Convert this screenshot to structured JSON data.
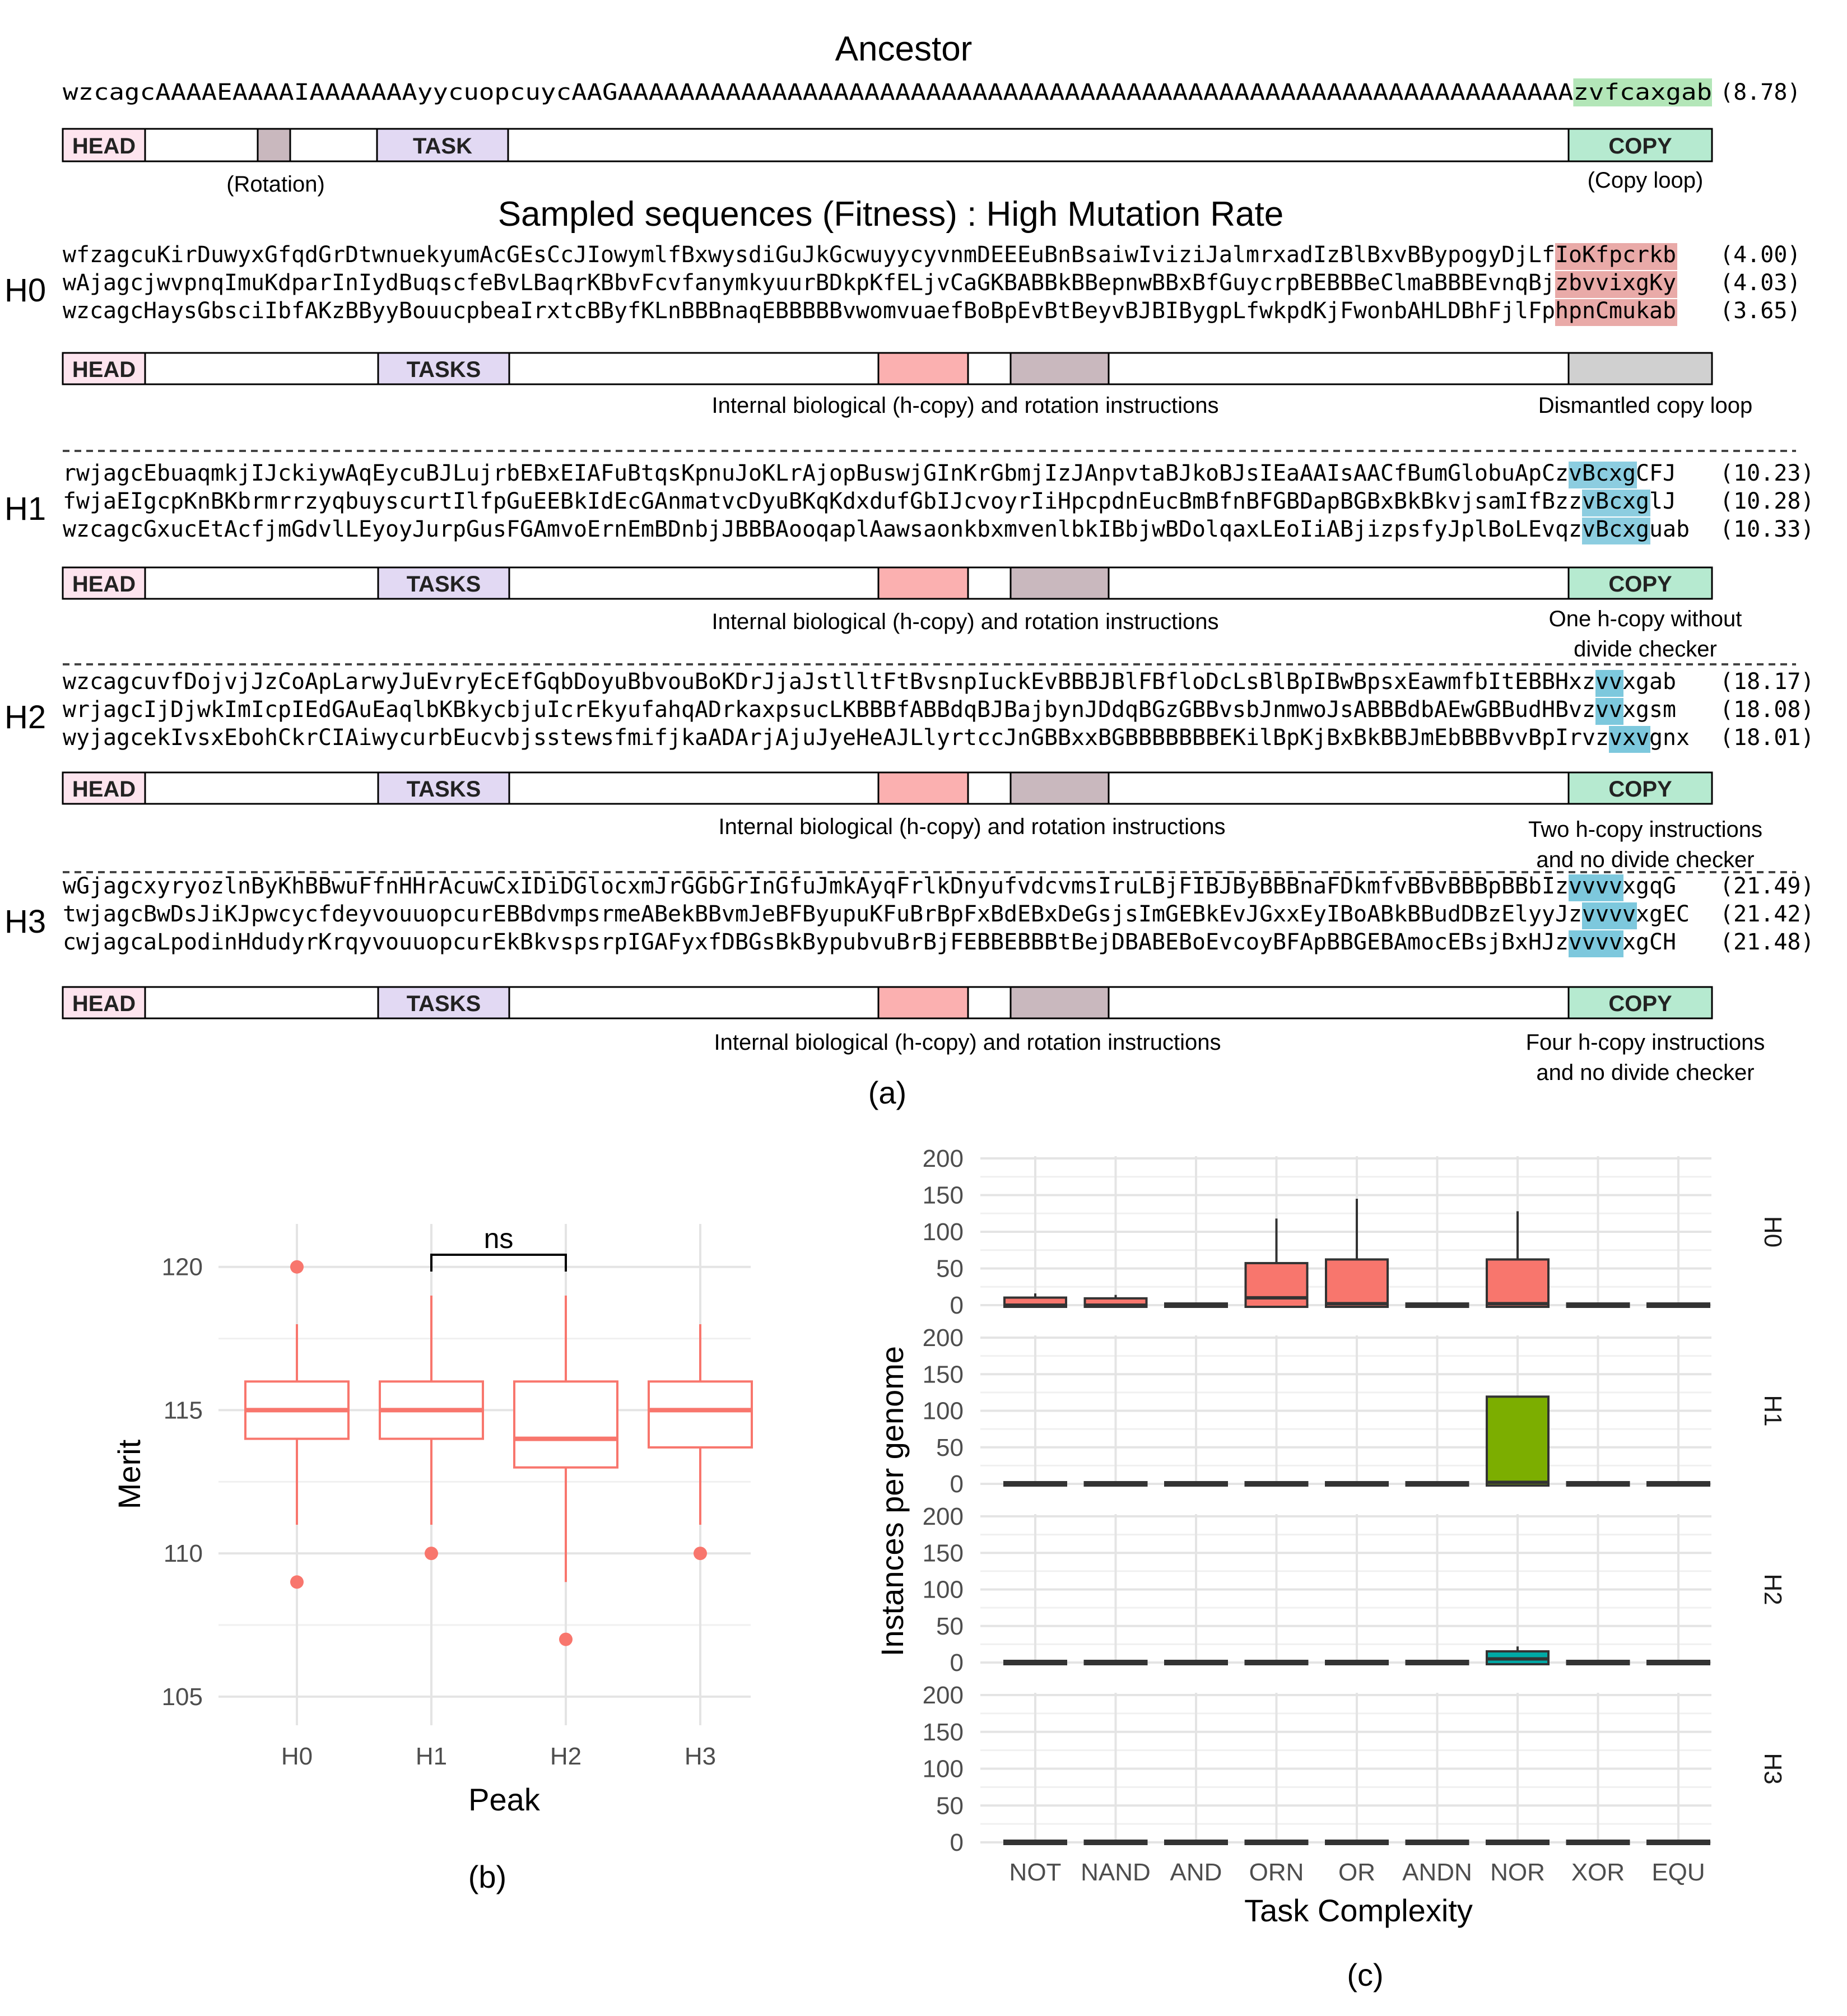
{
  "panel_a": {
    "ancestor": {
      "title": "Ancestor",
      "sequence": "wzcagcAAAAEAAAAIAAAAAAAyycuopcuycAAGAAAAAAAAAAAAAAAAAAAAAAAAAAAAAAAAAAAAAAAAAAAAAAAAAAAAAAAAAAAAAAzvfcaxgab",
      "highlight": "zvfcaxgab",
      "fitness": "(8.78)",
      "annotations": [
        "(Rotation)",
        "(Copy loop)"
      ]
    },
    "sampled_title": "Sampled sequences (Fitness) : High Mutation Rate",
    "segment_labels": {
      "head": "HEAD",
      "task": "TASK",
      "tasks": "TASKS",
      "copy": "COPY"
    },
    "groups": [
      {
        "label": "H0",
        "rows": [
          {
            "prefix": "wfzagcuKirDuwyxGfqdGrDtwnuekyumAcGEsCcJIowymlfBxwysdiGuJkGcwuyycyvnmDEEEuBnBsaiwIviziJalmrxadIzBlBxvBBypogyDjLf",
            "highlight": "IoKfpcrkb",
            "suffix": "",
            "fitness": "(4.00)"
          },
          {
            "prefix": "wAjagcjwvpnqImuKdparInIydBuqscfeBvLBaqrKBbvFcvfanymkyuurBDkpKfELjvCaGKBABBkBBepnwBBxBfGuycrpBEBBBeClmaBBBEvnqBj",
            "highlight": "zbvvixgKy",
            "suffix": "",
            "fitness": "(4.03)"
          },
          {
            "prefix": "wzcagcHaysGbsciIbfAKzBByyBouucpbeaIrxtcBByfKLnBBBnaqEBBBBBvwomvuaefBoBpEvBtBeyvBJBIBygpLfwkpdKjFwonbAHLDBhFjlFp",
            "highlight": "hpnCmukab",
            "suffix": "",
            "fitness": "(3.65)"
          }
        ],
        "notes": [
          "Internal biological (h-copy) and rotation instructions",
          "Dismantled copy loop"
        ]
      },
      {
        "label": "H1",
        "rows": [
          {
            "prefix": "rwjagcEbuaqmkjIJckiywAqEycuBJLujrbEBxEIAFuBtqsKpnuJoKLrAjopBuswjGInKrGbmjIzJAnpvtaBJkoBJsIEaAAIsAACfBumGlobuApCz",
            "highlight": "vBcxg",
            "suffix": "CFJ",
            "fitness": "(10.23)"
          },
          {
            "prefix": "fwjaEIgcpKnBKbrmrrzyqbuyscurtIlfpGuEEBkIdEcGAnmatvcDyuBKqKdxdufGbIJcvoyrIiHpcpdnEucBmBfnBFGBDapBGBxBkBkvjsamIfBzz",
            "highlight": "vBcxg",
            "suffix": "lJ",
            "fitness": "(10.28)"
          },
          {
            "prefix": "wzcagcGxucEtAcfjmGdvlLEyoyJurpGusFGAmvoErnEmBDnbjJBBBAooqaplAawsaonkbxmvenlbkIBbjwBDolqaxLEoIiABjizpsfyJplBoLEvqz",
            "highlight": "vBcxg",
            "suffix": "uab",
            "fitness": "(10.33)"
          }
        ],
        "notes": [
          "Internal biological (h-copy) and rotation instructions",
          "One h-copy without",
          "divide checker"
        ]
      },
      {
        "label": "H2",
        "rows": [
          {
            "prefix": "wzcagcuvfDojvjJzCoApLarwyJuEvryEcEfGqbDoyuBbvouBoKDrJjaJstlltFtBvsnpIuckEvBBBJBlFBfloDcLsBlBpIBwBpsxEawmfbItEBBHxz",
            "highlight": "vv",
            "suffix": "xgab",
            "fitness": "(18.17)"
          },
          {
            "prefix": "wrjagcIjDjwkImIcpIEdGAuEaqlbKBkycbjuIcrEkyufahqADrkaxpsucLKBBBfABBdqBJBajbynJDdqBGzGBBvsbJnmwoJsABBBdbAEwGBBudHBvz",
            "highlight": "vv",
            "suffix": "xgsm",
            "fitness": "(18.08)"
          },
          {
            "prefix": "wyjagcekIvsxEbohCkrCIAiwycurbEucvbjsstewsfmifjkaADArjAjuJyeHeAJLlyrtccJnGBBxxBGBBBBBBBEKilBpKjBxBkBBJmEbBBBvvBpIrvz",
            "highlight": "vxv",
            "suffix": "gnx",
            "fitness": "(18.01)"
          }
        ],
        "notes": [
          "Internal biological (h-copy) and rotation instructions",
          "Two h-copy instructions",
          "and no divide checker"
        ]
      },
      {
        "label": "H3",
        "rows": [
          {
            "prefix": "wGjagcxyryozlnByKhBBwuFfnHHrAcuwCxIDiDGlocxmJrGGbGrInGfuJmkAyqFrlkDnyufvdcvmsIruLBjFIBJByBBBnaFDkmfvBBvBBBpBBbIz",
            "highlight": "vvvv",
            "suffix": "xgqG",
            "fitness": "(21.49)"
          },
          {
            "prefix": "twjagcBwDsJiKJpwcycfdeyvouuopcurEBBdvmpsrmeABekBBvmJeBFByupuKFuBrBpFxBdEBxDeGsjsImGEBkEvJGxxEyIBoABkBBudDBzElyyJz",
            "highlight": "vvvv",
            "suffix": "xgEC",
            "fitness": "(21.42)"
          },
          {
            "prefix": "cwjagcaLpodinHdudyrKrqyvouuopcurEkBkvspsrpIGAFyxfDBGsBkBypubvuBrBjFEBBEBBBtBejDBABEBoEvcoyBFApBBGEBAmocEBsjBxHJz",
            "highlight": "vvvv",
            "suffix": "xgCH",
            "fitness": "(21.48)"
          }
        ],
        "notes": [
          "Internal biological (h-copy) and rotation instructions",
          "Four h-copy instructions",
          "and no divide checker"
        ]
      }
    ],
    "caption": "(a)"
  },
  "chart_data": [
    {
      "type": "box",
      "panel": "(b)",
      "xlabel": "Peak",
      "ylabel": "Merit",
      "categories": [
        "H0",
        "H1",
        "H2",
        "H3"
      ],
      "ylim": [
        104,
        121.5
      ],
      "yticks": [
        105,
        110,
        115,
        120
      ],
      "boxes": [
        {
          "name": "H0",
          "low": 111,
          "q1": 114,
          "median": 115,
          "q3": 116,
          "high": 118,
          "outliers": [
            120,
            109
          ]
        },
        {
          "name": "H1",
          "low": 111,
          "q1": 114,
          "median": 115,
          "q3": 116,
          "high": 119,
          "outliers": [
            110
          ]
        },
        {
          "name": "H2",
          "low": 109,
          "q1": 113,
          "median": 114,
          "q3": 116,
          "high": 119,
          "outliers": [
            107
          ]
        },
        {
          "name": "H3",
          "low": 111,
          "q1": 113.7,
          "median": 115,
          "q3": 116,
          "high": 118,
          "outliers": [
            110
          ]
        }
      ],
      "significance": {
        "from": "H1",
        "to": "H2",
        "label": "ns"
      },
      "color": "#f8766d"
    },
    {
      "type": "box",
      "panel": "(c)",
      "xlabel": "Task Complexity",
      "ylabel": "Instances per genome",
      "categories": [
        "NOT",
        "NAND",
        "AND",
        "ORN",
        "OR",
        "ANDN",
        "NOR",
        "XOR",
        "EQU"
      ],
      "ylim": [
        0,
        200
      ],
      "yticks": [
        0,
        50,
        100,
        150,
        200
      ],
      "facets": [
        {
          "name": "H0",
          "color": "#f8766d",
          "boxes": [
            {
              "cat": "NOT",
              "low": 0,
              "q1": 0,
              "median": 0,
              "q3": 8,
              "high": 16
            },
            {
              "cat": "NAND",
              "low": 0,
              "q1": 0,
              "median": 0,
              "q3": 7,
              "high": 14
            },
            {
              "cat": "AND",
              "low": 0,
              "q1": 0,
              "median": 0,
              "q3": 0,
              "high": 0
            },
            {
              "cat": "ORN",
              "low": 0,
              "q1": 0,
              "median": 10,
              "q3": 55,
              "high": 118
            },
            {
              "cat": "OR",
              "low": 0,
              "q1": 0,
              "median": 2,
              "q3": 60,
              "high": 145
            },
            {
              "cat": "ANDN",
              "low": 0,
              "q1": 0,
              "median": 0,
              "q3": 0,
              "high": 0
            },
            {
              "cat": "NOR",
              "low": 0,
              "q1": 0,
              "median": 2,
              "q3": 60,
              "high": 128
            },
            {
              "cat": "XOR",
              "low": 0,
              "q1": 0,
              "median": 0,
              "q3": 0,
              "high": 0
            },
            {
              "cat": "EQU",
              "low": 0,
              "q1": 0,
              "median": 0,
              "q3": 0,
              "high": 0
            }
          ]
        },
        {
          "name": "H1",
          "color": "#7cae00",
          "boxes": [
            {
              "cat": "NOT",
              "low": 0,
              "q1": 0,
              "median": 0,
              "q3": 0,
              "high": 0
            },
            {
              "cat": "NAND",
              "low": 0,
              "q1": 0,
              "median": 0,
              "q3": 0,
              "high": 0
            },
            {
              "cat": "AND",
              "low": 0,
              "q1": 0,
              "median": 0,
              "q3": 0,
              "high": 0
            },
            {
              "cat": "ORN",
              "low": 0,
              "q1": 0,
              "median": 0,
              "q3": 0,
              "high": 0
            },
            {
              "cat": "OR",
              "low": 0,
              "q1": 0,
              "median": 0,
              "q3": 0,
              "high": 0
            },
            {
              "cat": "ANDN",
              "low": 0,
              "q1": 0,
              "median": 0,
              "q3": 0,
              "high": 0
            },
            {
              "cat": "NOR",
              "low": 0,
              "q1": 0,
              "median": 2,
              "q3": 117,
              "high": 118
            },
            {
              "cat": "XOR",
              "low": 0,
              "q1": 0,
              "median": 0,
              "q3": 0,
              "high": 0
            },
            {
              "cat": "EQU",
              "low": 0,
              "q1": 0,
              "median": 0,
              "q3": 0,
              "high": 0
            }
          ]
        },
        {
          "name": "H2",
          "color": "#00a9a5",
          "boxes": [
            {
              "cat": "NOT",
              "low": 0,
              "q1": 0,
              "median": 0,
              "q3": 0,
              "high": 0
            },
            {
              "cat": "NAND",
              "low": 0,
              "q1": 0,
              "median": 0,
              "q3": 0,
              "high": 0
            },
            {
              "cat": "AND",
              "low": 0,
              "q1": 0,
              "median": 0,
              "q3": 0,
              "high": 0
            },
            {
              "cat": "ORN",
              "low": 0,
              "q1": 0,
              "median": 0,
              "q3": 0,
              "high": 0
            },
            {
              "cat": "OR",
              "low": 0,
              "q1": 0,
              "median": 0,
              "q3": 0,
              "high": 0
            },
            {
              "cat": "ANDN",
              "low": 0,
              "q1": 0,
              "median": 0,
              "q3": 0,
              "high": 0
            },
            {
              "cat": "NOR",
              "low": 0,
              "q1": 0,
              "median": 5,
              "q3": 13,
              "high": 22
            },
            {
              "cat": "XOR",
              "low": 0,
              "q1": 0,
              "median": 0,
              "q3": 0,
              "high": 0
            },
            {
              "cat": "EQU",
              "low": 0,
              "q1": 0,
              "median": 0,
              "q3": 0,
              "high": 0
            }
          ]
        },
        {
          "name": "H3",
          "color": "#c77cff",
          "boxes": [
            {
              "cat": "NOT",
              "low": 0,
              "q1": 0,
              "median": 0,
              "q3": 0,
              "high": 0
            },
            {
              "cat": "NAND",
              "low": 0,
              "q1": 0,
              "median": 0,
              "q3": 0,
              "high": 0
            },
            {
              "cat": "AND",
              "low": 0,
              "q1": 0,
              "median": 0,
              "q3": 0,
              "high": 0
            },
            {
              "cat": "ORN",
              "low": 0,
              "q1": 0,
              "median": 0,
              "q3": 0,
              "high": 0
            },
            {
              "cat": "OR",
              "low": 0,
              "q1": 0,
              "median": 0,
              "q3": 0,
              "high": 0
            },
            {
              "cat": "ANDN",
              "low": 0,
              "q1": 0,
              "median": 0,
              "q3": 0,
              "high": 0
            },
            {
              "cat": "NOR",
              "low": 0,
              "q1": 0,
              "median": 0,
              "q3": 0,
              "high": 0
            },
            {
              "cat": "XOR",
              "low": 0,
              "q1": 0,
              "median": 0,
              "q3": 0,
              "high": 0
            },
            {
              "cat": "EQU",
              "low": 0,
              "q1": 0,
              "median": 0,
              "q3": 0,
              "high": 0
            }
          ]
        }
      ]
    }
  ],
  "colors": {
    "head": "#fde4ee",
    "task": "#e2d9f3",
    "copy": "#b6ead0",
    "hcopy": "#fbb0b0",
    "rotation": "#c9b8be",
    "dismantled": "#d0d0d0",
    "h0_highlight": "#e9aaa8",
    "h1_highlight": "#8ccde0",
    "h1_highlight_alt": "#b0e4c2",
    "h23_highlight": "#7dc8dd",
    "ancestor_highlight": "#b3e6b8"
  }
}
